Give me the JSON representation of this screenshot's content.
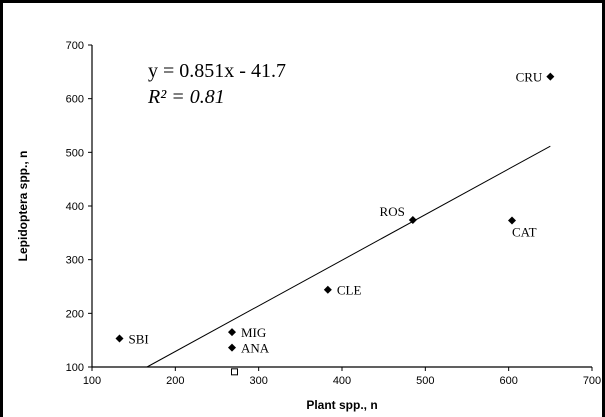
{
  "chart_data": {
    "type": "scatter",
    "annotations": [
      "y = 0.851x - 41.7",
      "R² = 0.81"
    ],
    "xlabel": "Plant spp., n",
    "ylabel": "Lepidoptera spp., n",
    "xlim": [
      100,
      700
    ],
    "ylim": [
      100,
      700
    ],
    "xticks": [
      100,
      200,
      300,
      400,
      500,
      600,
      700
    ],
    "yticks": [
      100,
      200,
      300,
      400,
      500,
      600,
      700
    ],
    "labels": [
      "SBI",
      "MIG",
      "ANA",
      "CLE",
      "ROS",
      "CAT",
      "CRU",
      null
    ],
    "x": [
      133,
      268,
      268,
      383,
      485,
      604,
      650,
      271
    ],
    "values": [
      153,
      165,
      136,
      244,
      374,
      373,
      641,
      91
    ],
    "fit_line": {
      "x": [
        166,
        650
      ],
      "y": [
        100,
        511.5
      ]
    },
    "color": "#000000"
  }
}
